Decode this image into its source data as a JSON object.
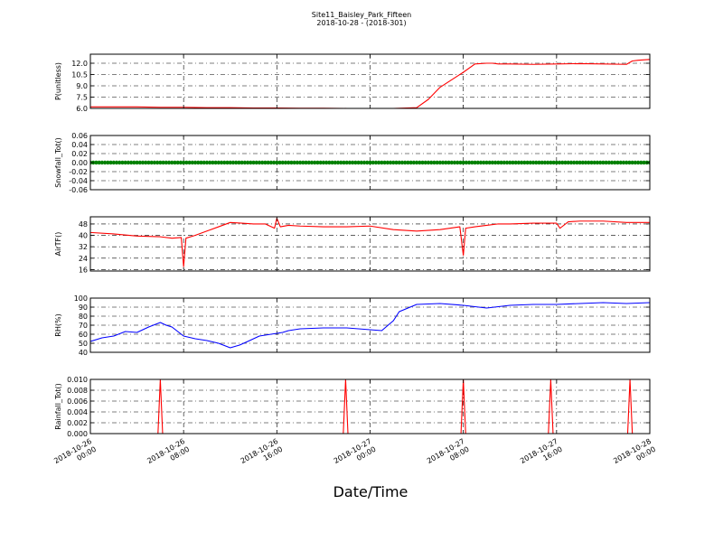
{
  "figure": {
    "title_line1": "Site11_Baisley_Park_Fifteen",
    "title_line2": "2018-10-28 - (2018-301)",
    "xlabel": "Date/Time"
  },
  "chart_data": [
    {
      "type": "line",
      "ylabel": "P(unitless)",
      "ylim": [
        6.0,
        13.2
      ],
      "yticks": [
        "6.0",
        "7.5",
        "9.0",
        "10.5",
        "12.0"
      ],
      "ytick_values": [
        6.0,
        7.5,
        9.0,
        10.5,
        12.0
      ],
      "color": "#ff0000",
      "grid": true,
      "x": [
        0,
        2,
        4,
        6,
        8,
        10,
        12,
        14,
        16,
        18,
        20,
        22,
        24,
        26,
        28,
        29,
        30,
        31,
        32,
        33,
        34,
        34.5,
        35,
        36,
        38,
        40,
        42,
        44,
        46,
        46.5,
        47,
        48
      ],
      "y": [
        6.2,
        6.2,
        6.2,
        6.15,
        6.15,
        6.1,
        6.1,
        6.05,
        6.05,
        6.02,
        6.02,
        6.0,
        6.0,
        6.0,
        6.1,
        7.2,
        8.8,
        9.8,
        10.8,
        11.9,
        12.0,
        12.0,
        11.9,
        11.9,
        11.85,
        11.9,
        11.95,
        11.9,
        11.85,
        12.3,
        12.4,
        12.5
      ]
    },
    {
      "type": "scatter",
      "ylabel": "Snowfall_Tot()",
      "ylim": [
        -0.06,
        0.06
      ],
      "yticks": [
        "-0.06",
        "-0.04",
        "-0.02",
        "0.00",
        "0.02",
        "0.04",
        "0.06"
      ],
      "ytick_values": [
        -0.06,
        -0.04,
        -0.02,
        0.0,
        0.02,
        0.04,
        0.06
      ],
      "color": "#008000",
      "grid": true,
      "x": [
        0,
        48
      ],
      "y": [
        0.0,
        0.0
      ]
    },
    {
      "type": "line",
      "ylabel": "AirTF()",
      "ylim": [
        15,
        53
      ],
      "yticks": [
        "16",
        "24",
        "32",
        "40",
        "48"
      ],
      "ytick_values": [
        16,
        24,
        32,
        40,
        48
      ],
      "color": "#ff0000",
      "grid": true,
      "x": [
        0,
        2,
        4,
        6,
        7,
        7.8,
        8,
        8.2,
        9,
        10,
        11,
        12,
        13,
        14,
        15,
        15.8,
        16,
        16.3,
        17,
        18,
        20,
        22,
        24,
        26,
        28,
        30,
        31.7,
        32,
        32.2,
        33,
        34,
        35,
        36,
        38,
        40,
        40.3,
        41,
        42,
        44,
        46,
        48
      ],
      "y": [
        42,
        41,
        39.5,
        39,
        38,
        38.5,
        18,
        38,
        40,
        43,
        46,
        49,
        48.5,
        48,
        48,
        45,
        52,
        46,
        47,
        46.5,
        46,
        46,
        46.5,
        44,
        43,
        44,
        46,
        26,
        45,
        46,
        47,
        48,
        48,
        48.5,
        48.5,
        45,
        49.5,
        50,
        50,
        49,
        49
      ]
    },
    {
      "type": "line",
      "ylabel": "RH(%)",
      "ylim": [
        40,
        100
      ],
      "yticks": [
        "40",
        "50",
        "60",
        "70",
        "80",
        "90",
        "100"
      ],
      "ytick_values": [
        40,
        50,
        60,
        70,
        80,
        90,
        100
      ],
      "color": "#0000ff",
      "grid": true,
      "x": [
        0,
        1,
        2,
        3,
        4,
        5,
        6,
        6.5,
        7,
        8,
        9,
        10,
        11,
        12,
        12.8,
        13.5,
        14.5,
        15.5,
        16.5,
        17,
        18,
        20,
        22,
        24,
        25,
        26,
        26.5,
        28,
        30,
        32,
        34,
        36,
        38,
        40,
        42,
        44,
        46,
        48
      ],
      "y": [
        52,
        56,
        58,
        63,
        62,
        68,
        73,
        70,
        68,
        58,
        55,
        53,
        50,
        45,
        48,
        52,
        58,
        60,
        62,
        64,
        66,
        67,
        67,
        65,
        64,
        75,
        85,
        93,
        94,
        92,
        89,
        92,
        93,
        93,
        94,
        95,
        94,
        95
      ]
    },
    {
      "type": "line",
      "ylabel": "Rainfall_Tot()",
      "ylim": [
        0.0,
        0.01
      ],
      "yticks": [
        "0.000",
        "0.002",
        "0.004",
        "0.006",
        "0.008",
        "0.010"
      ],
      "ytick_values": [
        0.0,
        0.002,
        0.004,
        0.006,
        0.008,
        0.01
      ],
      "color": "#ff0000",
      "grid": true,
      "x": [
        0,
        5.8,
        6,
        6.2,
        21.7,
        21.9,
        22.1,
        31.8,
        32,
        32.2,
        39.3,
        39.5,
        39.7,
        46.1,
        46.3,
        46.5,
        48
      ],
      "y": [
        0,
        0,
        0.01,
        0,
        0,
        0.01,
        0,
        0,
        0.01,
        0,
        0,
        0.01,
        0,
        0,
        0.01,
        0,
        0
      ]
    }
  ],
  "x_axis": {
    "ticks": [
      {
        "l1": "2018-10-26",
        "l2": "00:00",
        "h": 0
      },
      {
        "l1": "2018-10-26",
        "l2": "08:00",
        "h": 8
      },
      {
        "l1": "2018-10-26",
        "l2": "16:00",
        "h": 16
      },
      {
        "l1": "2018-10-27",
        "l2": "00:00",
        "h": 24
      },
      {
        "l1": "2018-10-27",
        "l2": "08:00",
        "h": 32
      },
      {
        "l1": "2018-10-27",
        "l2": "16:00",
        "h": 40
      },
      {
        "l1": "2018-10-28",
        "l2": "00:00",
        "h": 48
      }
    ]
  }
}
